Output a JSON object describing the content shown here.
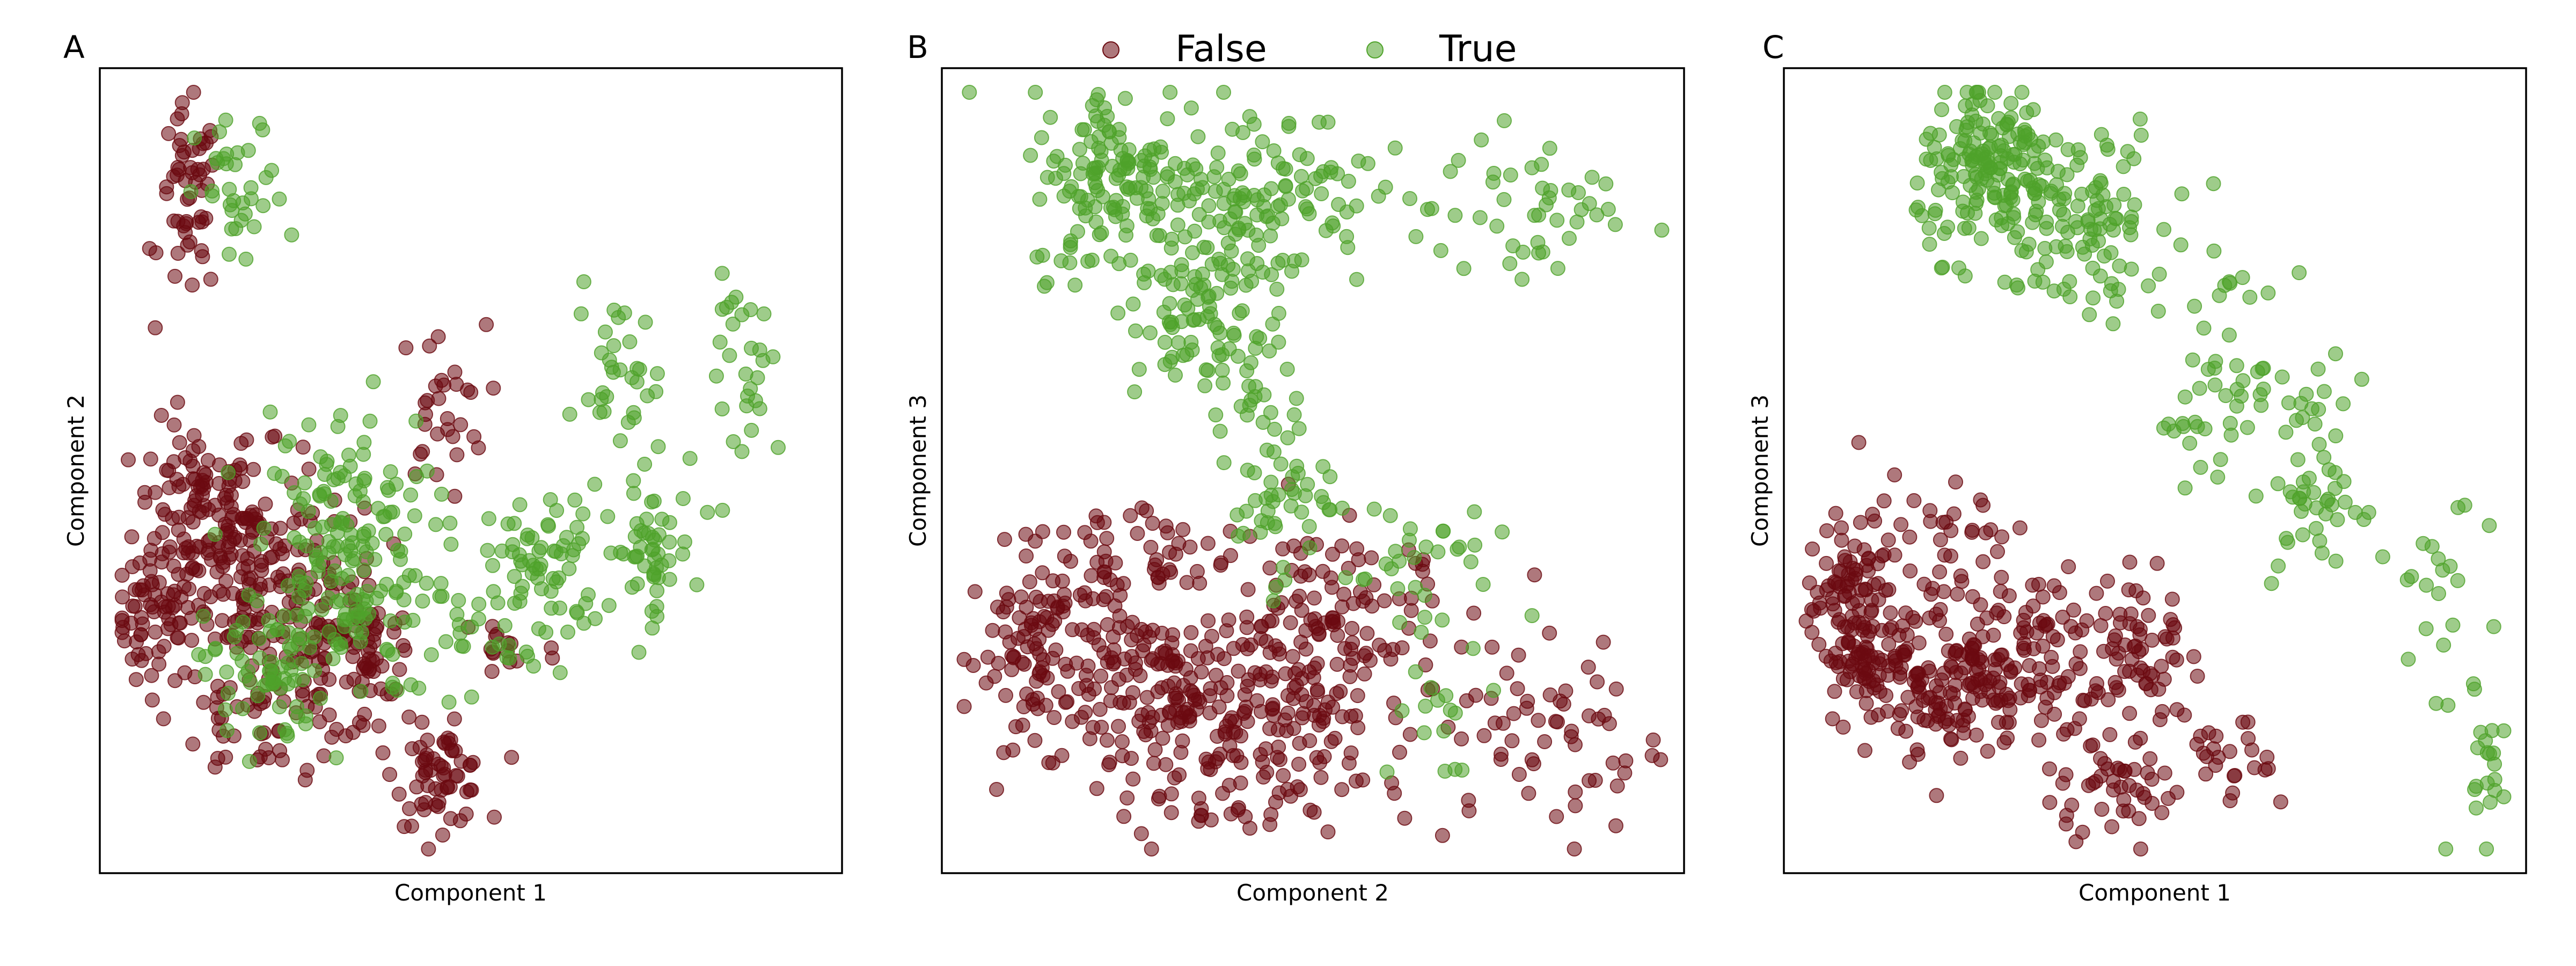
{
  "legend": {
    "placement": "top-center",
    "entries": [
      {
        "label": "False",
        "color": "#6b0a10"
      },
      {
        "label": "True",
        "color": "#4fa32a"
      }
    ]
  },
  "colors": {
    "False": "#6b0a10",
    "True": "#4fa32a",
    "point_alpha": 0.55
  },
  "chart_data": [
    {
      "type": "scatter",
      "panel": "A",
      "xlabel": "Component 1",
      "ylabel": "Component 2",
      "xlim": [
        0,
        100
      ],
      "ylim": [
        0,
        100
      ],
      "xticks": "none",
      "yticks": "none",
      "grid": false,
      "series": [
        {
          "name": "False",
          "clusters": [
            {
              "x": 8,
              "y": 32,
              "sx": 3,
              "sy": 4,
              "n": 70
            },
            {
              "x": 13,
              "y": 46,
              "sx": 4,
              "sy": 5,
              "n": 90
            },
            {
              "x": 20,
              "y": 38,
              "sx": 4,
              "sy": 7,
              "n": 120
            },
            {
              "x": 30,
              "y": 30,
              "sx": 6,
              "sy": 7,
              "n": 110
            },
            {
              "x": 12,
              "y": 83,
              "sx": 2,
              "sy": 6,
              "n": 55
            },
            {
              "x": 22,
              "y": 20,
              "sx": 6,
              "sy": 4,
              "n": 40
            },
            {
              "x": 46,
              "y": 12,
              "sx": 3,
              "sy": 3,
              "n": 60
            },
            {
              "x": 46,
              "y": 58,
              "sx": 3,
              "sy": 5,
              "n": 30
            },
            {
              "x": 36,
              "y": 24,
              "sx": 3,
              "sy": 5,
              "n": 35
            },
            {
              "x": 54,
              "y": 28,
              "sx": 4,
              "sy": 3,
              "n": 15
            }
          ]
        },
        {
          "name": "True",
          "clusters": [
            {
              "x": 33,
              "y": 40,
              "sx": 6,
              "sy": 9,
              "n": 170
            },
            {
              "x": 22,
              "y": 25,
              "sx": 4,
              "sy": 5,
              "n": 60
            },
            {
              "x": 19,
              "y": 84,
              "sx": 3,
              "sy": 5,
              "n": 35
            },
            {
              "x": 60,
              "y": 38,
              "sx": 4,
              "sy": 5,
              "n": 70
            },
            {
              "x": 74,
              "y": 40,
              "sx": 3,
              "sy": 4,
              "n": 50
            },
            {
              "x": 70,
              "y": 60,
              "sx": 3,
              "sy": 6,
              "n": 35
            },
            {
              "x": 88,
              "y": 62,
              "sx": 3,
              "sy": 6,
              "n": 30
            },
            {
              "x": 48,
              "y": 30,
              "sx": 4,
              "sy": 4,
              "n": 25
            }
          ]
        }
      ]
    },
    {
      "type": "scatter",
      "panel": "B",
      "xlabel": "Component 2",
      "ylabel": "Component 3",
      "xlim": [
        0,
        100
      ],
      "ylim": [
        0,
        100
      ],
      "xticks": "none",
      "yticks": "none",
      "grid": false,
      "series": [
        {
          "name": "False",
          "clusters": [
            {
              "x": 15,
              "y": 28,
              "sx": 6,
              "sy": 6,
              "n": 130
            },
            {
              "x": 32,
              "y": 22,
              "sx": 8,
              "sy": 6,
              "n": 150
            },
            {
              "x": 50,
              "y": 30,
              "sx": 7,
              "sy": 7,
              "n": 140
            },
            {
              "x": 40,
              "y": 12,
              "sx": 8,
              "sy": 5,
              "n": 80
            },
            {
              "x": 72,
              "y": 22,
              "sx": 8,
              "sy": 8,
              "n": 45
            },
            {
              "x": 87,
              "y": 16,
              "sx": 5,
              "sy": 6,
              "n": 30
            },
            {
              "x": 27,
              "y": 40,
              "sx": 6,
              "sy": 4,
              "n": 40
            }
          ]
        },
        {
          "name": "True",
          "clusters": [
            {
              "x": 24,
              "y": 86,
              "sx": 6,
              "sy": 6,
              "n": 140
            },
            {
              "x": 42,
              "y": 84,
              "sx": 8,
              "sy": 6,
              "n": 130
            },
            {
              "x": 36,
              "y": 68,
              "sx": 5,
              "sy": 5,
              "n": 80
            },
            {
              "x": 44,
              "y": 49,
              "sx": 4,
              "sy": 6,
              "n": 60
            },
            {
              "x": 80,
              "y": 82,
              "sx": 7,
              "sy": 5,
              "n": 45
            },
            {
              "x": 63,
              "y": 38,
              "sx": 5,
              "sy": 6,
              "n": 35
            },
            {
              "x": 66,
              "y": 17,
              "sx": 3,
              "sy": 5,
              "n": 12
            }
          ]
        }
      ]
    },
    {
      "type": "scatter",
      "panel": "C",
      "xlabel": "Component 1",
      "ylabel": "Component 3",
      "xlim": [
        0,
        100
      ],
      "ylim": [
        0,
        100
      ],
      "xticks": "none",
      "yticks": "none",
      "grid": false,
      "series": [
        {
          "name": "False",
          "clusters": [
            {
              "x": 9,
              "y": 32,
              "sx": 3,
              "sy": 6,
              "n": 110
            },
            {
              "x": 20,
              "y": 25,
              "sx": 6,
              "sy": 5,
              "n": 150
            },
            {
              "x": 32,
              "y": 27,
              "sx": 6,
              "sy": 6,
              "n": 120
            },
            {
              "x": 48,
              "y": 28,
              "sx": 3,
              "sy": 6,
              "n": 60
            },
            {
              "x": 45,
              "y": 11,
              "sx": 5,
              "sy": 3,
              "n": 45
            },
            {
              "x": 60,
              "y": 13,
              "sx": 3,
              "sy": 3,
              "n": 25
            },
            {
              "x": 20,
              "y": 42,
              "sx": 5,
              "sy": 4,
              "n": 30
            }
          ]
        },
        {
          "name": "True",
          "clusters": [
            {
              "x": 28,
              "y": 87,
              "sx": 5,
              "sy": 5,
              "n": 160
            },
            {
              "x": 40,
              "y": 82,
              "sx": 6,
              "sy": 6,
              "n": 110
            },
            {
              "x": 60,
              "y": 62,
              "sx": 4,
              "sy": 6,
              "n": 45
            },
            {
              "x": 72,
              "y": 48,
              "sx": 3,
              "sy": 7,
              "n": 50
            },
            {
              "x": 88,
              "y": 35,
              "sx": 3,
              "sy": 6,
              "n": 20
            },
            {
              "x": 94,
              "y": 14,
              "sx": 2,
              "sy": 6,
              "n": 22
            },
            {
              "x": 53,
              "y": 56,
              "sx": 2,
              "sy": 2,
              "n": 6
            }
          ]
        }
      ]
    }
  ]
}
